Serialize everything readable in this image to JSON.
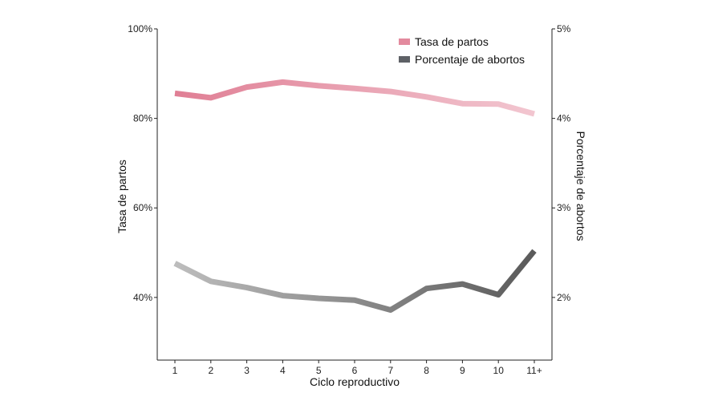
{
  "chart_data": {
    "type": "line",
    "title": "",
    "xlabel": "Ciclo reproductivo",
    "ylabel_left": "Tasa de partos",
    "ylabel_right": "Porcentaje de abortos",
    "categories": [
      "1",
      "2",
      "3",
      "4",
      "5",
      "6",
      "7",
      "8",
      "9",
      "10",
      "11+"
    ],
    "left_axis": {
      "range": [
        26,
        100
      ],
      "ticks": [
        40,
        60,
        80,
        100
      ],
      "tick_labels": [
        "40%",
        "60%",
        "80%",
        "100%"
      ]
    },
    "right_axis": {
      "range": [
        1.3,
        5.0
      ],
      "ticks": [
        2,
        3,
        4,
        5
      ],
      "tick_labels": [
        "2%",
        "3%",
        "4%",
        "5%"
      ]
    },
    "grid": false,
    "legend_position": "top-right",
    "series": [
      {
        "name": "Tasa de partos",
        "axis": "left",
        "values": [
          85.6,
          84.6,
          87.0,
          88.1,
          87.3,
          86.7,
          86.0,
          84.8,
          83.3,
          83.2,
          81.0
        ],
        "color_start": "#e07f95",
        "color_end": "#f2c6d0",
        "legend_color": "#e38a9e"
      },
      {
        "name": "Porcentaje de abortos",
        "axis": "right",
        "values": [
          2.38,
          2.18,
          2.11,
          2.02,
          1.99,
          1.97,
          1.86,
          2.1,
          2.15,
          2.03,
          2.52
        ],
        "color_start": "#bdbdbd",
        "color_end": "#5a5a5a",
        "legend_color": "#5e6166"
      }
    ]
  }
}
